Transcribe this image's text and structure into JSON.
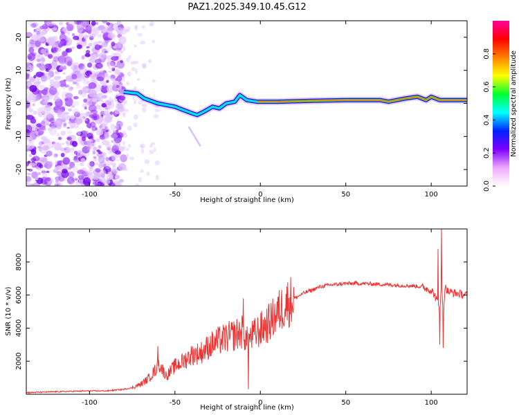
{
  "title": "PAZ1.2025.349.10.45.G12",
  "chart_data": [
    {
      "type": "heatmap",
      "name": "spectrogram",
      "xlabel": "Height of straight line (km)",
      "ylabel": "Frequency (Hz)",
      "xlim": [
        -137,
        121
      ],
      "ylim": [
        -25,
        25
      ],
      "xticks": [
        -100,
        -50,
        0,
        50,
        100
      ],
      "yticks": [
        -20,
        -10,
        0,
        10,
        20
      ],
      "xtick_labels": [
        "-100",
        "-50",
        "0",
        "50",
        "100"
      ],
      "ytick_labels": [
        "-20",
        "-10",
        "0",
        "10",
        "20"
      ],
      "ridge": {
        "heights_km": [
          -80,
          -72,
          -68,
          -60,
          -55,
          -50,
          -45,
          -40,
          -37,
          -33,
          -28,
          -24,
          -20,
          -15,
          -12,
          -8,
          -2,
          10,
          30,
          50,
          70,
          75,
          85,
          92,
          97,
          100,
          105,
          121
        ],
        "frequency_hz": [
          3.5,
          3.0,
          1.5,
          0.0,
          -0.5,
          -1.0,
          -2.0,
          -3.0,
          -3.5,
          -2.5,
          -1.0,
          -1.5,
          0.0,
          0.5,
          2.5,
          1.0,
          0.5,
          0.5,
          0.8,
          1.0,
          1.0,
          0.5,
          1.5,
          2.0,
          1.0,
          2.0,
          1.0,
          1.0
        ]
      },
      "noise_region_km": [
        -137,
        -80
      ]
    },
    {
      "type": "colorbar",
      "name": "colorbar",
      "label": "Normalized spectral amplitude",
      "ylim": [
        0,
        1
      ],
      "ticks": [
        0.0,
        0.2,
        0.4,
        0.6,
        0.8
      ],
      "tick_labels": [
        "0.0",
        "0.2",
        "0.4",
        "0.6",
        "0.8"
      ],
      "colors": [
        "#ffffff",
        "#f0a8ff",
        "#8000ff",
        "#0020ff",
        "#00ffff",
        "#00ff30",
        "#ffff00",
        "#ff8000",
        "#ff0000",
        "#ff00a0"
      ]
    },
    {
      "type": "line",
      "name": "snr",
      "xlabel": "Height of straight line (km)",
      "ylabel": "SNR (10 * v/v)",
      "xlim": [
        -137,
        121
      ],
      "ylim": [
        0,
        10000
      ],
      "xticks": [
        -100,
        -50,
        0,
        50,
        100
      ],
      "yticks": [
        2000,
        4000,
        6000,
        8000
      ],
      "xtick_labels": [
        "-100",
        "-50",
        "0",
        "50",
        "100"
      ],
      "ytick_labels": [
        "2000",
        "4000",
        "6000",
        "8000"
      ],
      "color": "#ee3333",
      "x": [
        -137,
        -120,
        -100,
        -90,
        -80,
        -75,
        -70,
        -66,
        -62,
        -59,
        -55,
        -50,
        -45,
        -40,
        -35,
        -30,
        -25,
        -20,
        -15,
        -10,
        -8,
        -5,
        0,
        5,
        10,
        15,
        20,
        25,
        30,
        35,
        40,
        50,
        60,
        70,
        80,
        90,
        95,
        97,
        100,
        102,
        104,
        105,
        106,
        107,
        108,
        110,
        115,
        121
      ],
      "y": [
        100,
        150,
        200,
        200,
        300,
        400,
        600,
        900,
        1400,
        1800,
        1100,
        1700,
        2000,
        2400,
        2500,
        2900,
        3200,
        3400,
        3600,
        3800,
        3200,
        3500,
        3900,
        4300,
        4900,
        5500,
        5800,
        6100,
        6300,
        6500,
        6600,
        6700,
        6700,
        6650,
        6600,
        6550,
        6500,
        6400,
        6300,
        6000,
        5500,
        5000,
        7000,
        4500,
        6500,
        6200,
        6100,
        6000
      ],
      "spikes": [
        {
          "x": -60,
          "y": 2900
        },
        {
          "x": -10,
          "y": 5800
        },
        {
          "x": -7,
          "y": 300
        },
        {
          "x": 104,
          "y": 8800
        },
        {
          "x": 105,
          "y": 3000
        },
        {
          "x": 106,
          "y": 10000
        },
        {
          "x": 107,
          "y": 2800
        }
      ]
    }
  ]
}
